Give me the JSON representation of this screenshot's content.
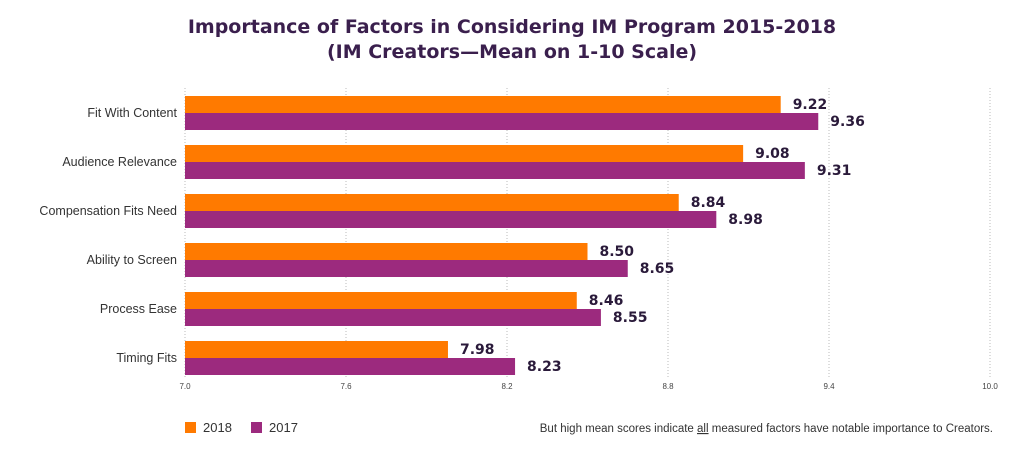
{
  "chart_data": {
    "type": "bar",
    "orientation": "horizontal",
    "title": "Importance of Factors in Considering IM Program 2015-2018",
    "subtitle": "(IM Creators—Mean on 1-10 Scale)",
    "categories": [
      "Fit With Content",
      "Audience Relevance",
      "Compensation Fits Need",
      "Ability to Screen",
      "Process Ease",
      "Timing Fits"
    ],
    "series": [
      {
        "name": "2018",
        "color": "#ff7a00",
        "values": [
          9.22,
          9.08,
          8.84,
          8.5,
          8.46,
          7.98
        ],
        "value_labels": [
          "9.22",
          "9.08",
          "8.84",
          "8.50",
          "8.46",
          "7.98"
        ]
      },
      {
        "name": "2017",
        "color": "#9c2a7e",
        "values": [
          9.36,
          9.31,
          8.98,
          8.65,
          8.55,
          8.23
        ],
        "value_labels": [
          "9.36",
          "9.31",
          "8.98",
          "8.65",
          "8.55",
          "8.23"
        ]
      }
    ],
    "xlim": [
      7.0,
      10.0
    ],
    "ticks": [
      7.0,
      7.6,
      8.2,
      8.8,
      9.4,
      10.0
    ],
    "tick_labels": [
      "7.0",
      "7.6",
      "8.2",
      "8.8",
      "9.4",
      "10.0"
    ],
    "grid": "vertical dotted",
    "legend_position": "bottom-left",
    "footnote": {
      "before": "But high mean scores indicate ",
      "underlined": "all",
      "after": " measured factors have notable importance to Creators."
    }
  }
}
